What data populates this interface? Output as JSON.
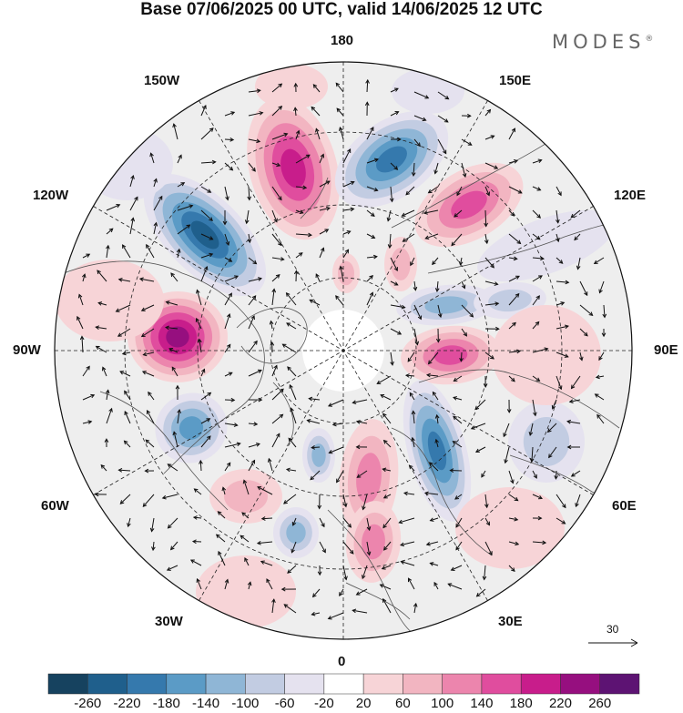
{
  "title": "Base 07/06/2025 00 UTC, valid 14/06/2025 12 UTC",
  "brand": "MODES",
  "brand_mark": "®",
  "longitude_labels": {
    "top": "180",
    "bottom": "0",
    "left": "90W",
    "right": "90E",
    "upper_left": "150W",
    "upper_right": "150E",
    "mid_left_upper": "120W",
    "mid_right_upper": "120E",
    "mid_left_lower": "60W",
    "mid_right_lower": "60E",
    "lower_left": "30W",
    "lower_right": "30E"
  },
  "reference_vector": {
    "label": "30"
  },
  "colorbar": {
    "ticks": [
      "-260",
      "-220",
      "-180",
      "-140",
      "-100",
      "-60",
      "-20",
      "20",
      "60",
      "100",
      "140",
      "180",
      "220",
      "260"
    ],
    "colors": [
      "#16425f",
      "#1f5f8c",
      "#3579ad",
      "#5b9bc6",
      "#8fb6d6",
      "#c2cce2",
      "#e5e2ef",
      "#ffffff",
      "#f7d4d7",
      "#f2b5c1",
      "#ec85ad",
      "#e04d9e",
      "#c81d8b",
      "#960f7f",
      "#5d1373"
    ]
  },
  "map_colors": {
    "land_outline": "#555555",
    "grid": "#222222",
    "background": "#eeeeee"
  }
}
